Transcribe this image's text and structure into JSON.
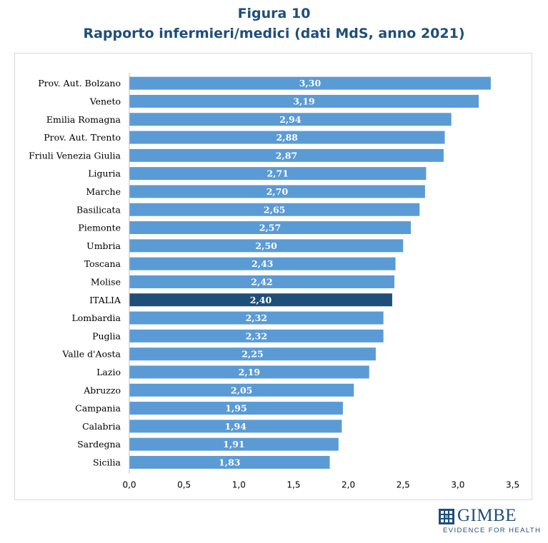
{
  "header": {
    "figure_number": "Figura 10",
    "title": "Rapporto infermieri/medici (dati MdS, anno 2021)"
  },
  "logo": {
    "name": "GIMBE",
    "tagline": "EVIDENCE FOR HEALTH"
  },
  "colors": {
    "bar": "#5b9bd5",
    "highlight_bar": "#1f4e79",
    "title": "#1f4e79",
    "label": "#ffffff"
  },
  "chart_data": {
    "type": "bar",
    "orientation": "horizontal",
    "categories": [
      "Prov. Aut. Bolzano",
      "Veneto",
      "Emilia Romagna",
      "Prov. Aut. Trento",
      "Friuli Venezia Giulia",
      "Liguria",
      "Marche",
      "Basilicata",
      "Piemonte",
      "Umbria",
      "Toscana",
      "Molise",
      "ITALIA",
      "Lombardia",
      "Puglia",
      "Valle d'Aosta",
      "Lazio",
      "Abruzzo",
      "Campania",
      "Calabria",
      "Sardegna",
      "Sicilia"
    ],
    "values": [
      3.3,
      3.19,
      2.94,
      2.88,
      2.87,
      2.71,
      2.7,
      2.65,
      2.57,
      2.5,
      2.43,
      2.42,
      2.4,
      2.32,
      2.32,
      2.25,
      2.19,
      2.05,
      1.95,
      1.94,
      1.91,
      1.83
    ],
    "value_labels": [
      "3,30",
      "3,19",
      "2,94",
      "2,88",
      "2,87",
      "2,71",
      "2,70",
      "2,65",
      "2,57",
      "2,50",
      "2,43",
      "2,42",
      "2,40",
      "2,32",
      "2,32",
      "2,25",
      "2,19",
      "2,05",
      "1,95",
      "1,94",
      "1,91",
      "1,83"
    ],
    "highlight": "ITALIA",
    "xlim": [
      0,
      3.5
    ],
    "xticks": [
      0,
      0.5,
      1.0,
      1.5,
      2.0,
      2.5,
      3.0,
      3.5
    ],
    "xtick_labels": [
      "0,0",
      "0,5",
      "1,0",
      "1,5",
      "2,0",
      "2,5",
      "3,0",
      "3,5"
    ],
    "grid": false,
    "legend": "none",
    "xlabel": "",
    "ylabel": ""
  }
}
